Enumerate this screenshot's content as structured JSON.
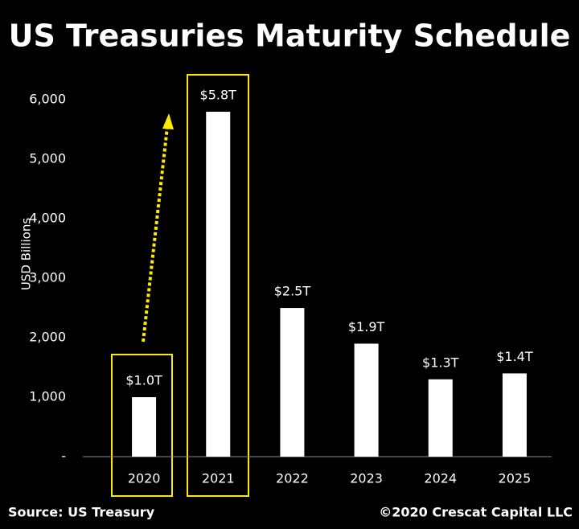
{
  "chart_data": {
    "type": "bar",
    "title": "US Treasuries Maturity Schedule",
    "y_label": "USD Billions",
    "categories": [
      "2020",
      "2021",
      "2022",
      "2023",
      "2024",
      "2025"
    ],
    "values": [
      1000,
      5800,
      2500,
      1900,
      1300,
      1400
    ],
    "value_labels": [
      "$1.0T",
      "$5.8T",
      "$2.5T",
      "$1.9T",
      "$1.3T",
      "$1.4T"
    ],
    "color": "#ffffff",
    "ylim": [
      0,
      6300
    ],
    "yticks": [
      {
        "value": 0,
        "label": "-"
      },
      {
        "value": 1000,
        "label": "1,000"
      },
      {
        "value": 2000,
        "label": "2,000"
      },
      {
        "value": 3000,
        "label": "3,000"
      },
      {
        "value": 4000,
        "label": "4,000"
      },
      {
        "value": 5000,
        "label": "5,000"
      },
      {
        "value": 6000,
        "label": "6,000"
      }
    ],
    "source": "Source: US Treasury",
    "copyright": "©2020 Crescat Capital LLC"
  }
}
